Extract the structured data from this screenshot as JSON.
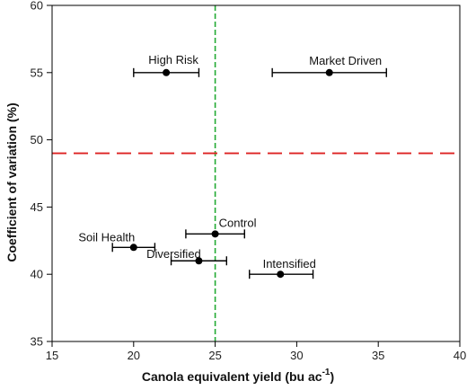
{
  "chart_data": {
    "type": "scatter",
    "xlabel": "Canola equivalent yield (bu ac",
    "xlabel_sup": "-1",
    "xlabel_close": ")",
    "ylabel": "Coefficient of variation (%)",
    "xlim": [
      15,
      40
    ],
    "ylim": [
      35,
      60
    ],
    "xticks": [
      15,
      20,
      25,
      30,
      35,
      40
    ],
    "yticks": [
      35,
      40,
      45,
      50,
      55,
      60
    ],
    "grid": false,
    "points": [
      {
        "label": "High Risk",
        "x": 22,
        "y": 55,
        "xerr_low": 20,
        "xerr_high": 24
      },
      {
        "label": "Market Driven",
        "x": 32,
        "y": 55,
        "xerr_low": 28.5,
        "xerr_high": 35.5
      },
      {
        "label": "Control",
        "x": 25,
        "y": 43,
        "xerr_low": 23.2,
        "xerr_high": 26.8
      },
      {
        "label": "Soil Health",
        "x": 20,
        "y": 42,
        "xerr_low": 18.7,
        "xerr_high": 21.3
      },
      {
        "label": "Diversified",
        "x": 24,
        "y": 41,
        "xerr_low": 22.3,
        "xerr_high": 25.7
      },
      {
        "label": "Intensified",
        "x": 29,
        "y": 40,
        "xerr_low": 27.1,
        "xerr_high": 31
      }
    ],
    "reference_lines": [
      {
        "orientation": "vertical",
        "value": 25,
        "color": "#22aa33",
        "style": "dashed"
      },
      {
        "orientation": "horizontal",
        "value": 49,
        "color": "#dd2222",
        "style": "dashed"
      }
    ],
    "marker_color": "#000000"
  }
}
